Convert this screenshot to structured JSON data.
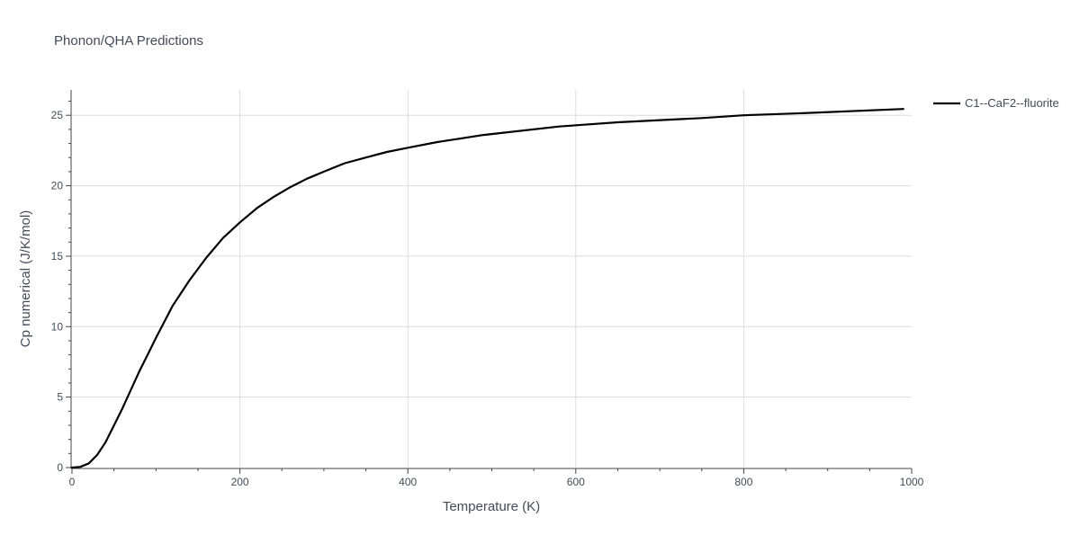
{
  "chart_data": {
    "type": "line",
    "title": "Phonon/QHA Predictions",
    "xlabel": "Temperature (K)",
    "ylabel": "Cp numerical (J/K/mol)",
    "xlim": [
      0,
      1000
    ],
    "ylim": [
      0,
      26.8
    ],
    "xticks": [
      0,
      200,
      400,
      600,
      800,
      1000
    ],
    "xtick_labels": [
      "0",
      "200",
      "400",
      "600",
      "800",
      "1000"
    ],
    "yticks": [
      0,
      5,
      10,
      15,
      20,
      25
    ],
    "ytick_labels": [
      "0",
      "5",
      "10",
      "15",
      "20",
      "25"
    ],
    "grid": true,
    "legend_position": "top-right outside",
    "series": [
      {
        "name": "C1--CaF2--fluorite",
        "color": "#000000",
        "x": [
          0,
          10,
          20,
          30,
          40,
          50,
          60,
          70,
          80,
          90,
          100,
          120,
          140,
          160,
          180,
          200,
          220,
          240,
          260,
          280,
          300,
          325,
          350,
          375,
          400,
          435,
          490,
          580,
          650,
          750,
          800,
          870,
          990
        ],
        "y": [
          0,
          0.05,
          0.3,
          0.9,
          1.8,
          3.0,
          4.2,
          5.5,
          6.8,
          8.0,
          9.2,
          11.5,
          13.3,
          14.9,
          16.3,
          17.4,
          18.4,
          19.2,
          19.9,
          20.5,
          21.0,
          21.6,
          22.0,
          22.4,
          22.7,
          23.1,
          23.6,
          24.2,
          24.5,
          24.8,
          25.0,
          25.15,
          25.45
        ]
      }
    ]
  }
}
